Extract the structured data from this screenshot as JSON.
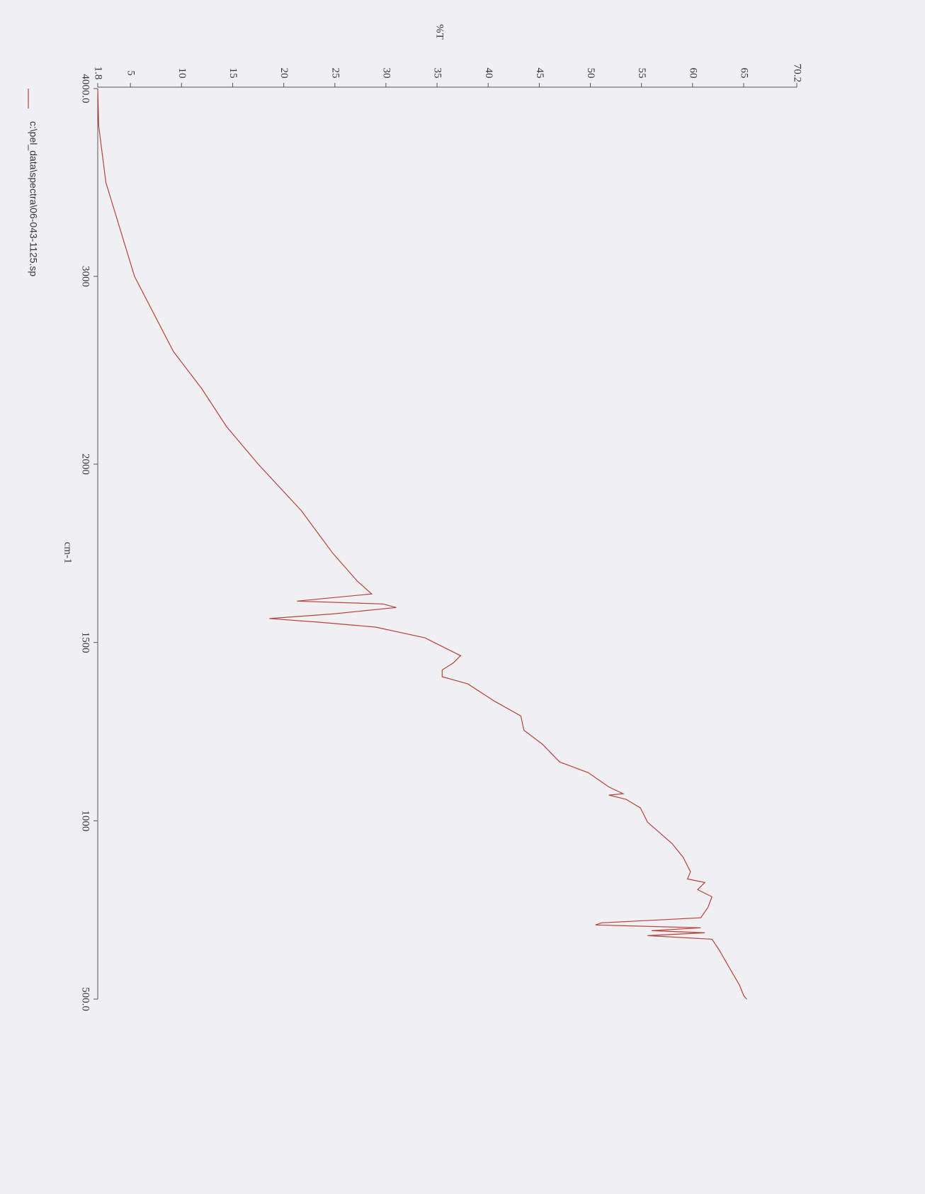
{
  "chart_data": {
    "type": "line",
    "orientation": "rotated",
    "x_label": "cm-1",
    "y_label": "%T",
    "xlim": [
      4000,
      500
    ],
    "x_scale_break": 2000,
    "xticks": [
      {
        "value": 4000,
        "label": "4000.0"
      },
      3000,
      2000,
      1500,
      1000,
      {
        "value": 500,
        "label": "500.0"
      }
    ],
    "ylim": [
      1.8,
      70.2
    ],
    "yticks": [
      1.8,
      5,
      10,
      15,
      20,
      25,
      30,
      35,
      40,
      45,
      50,
      55,
      60,
      65,
      70.2
    ],
    "legend": "left",
    "x": [
      4000,
      3800,
      3500,
      3000,
      2600,
      2400,
      2200,
      2000,
      1870,
      1750,
      1672,
      1636,
      1616,
      1608,
      1598,
      1580,
      1567,
      1557,
      1543,
      1513,
      1463,
      1443,
      1423,
      1404,
      1384,
      1334,
      1294,
      1254,
      1215,
      1165,
      1135,
      1095,
      1076,
      1072,
      1060,
      1036,
      996,
      936,
      897,
      857,
      837,
      827,
      807,
      787,
      757,
      728,
      714,
      708,
      700,
      692,
      686,
      678,
      668,
      638,
      588,
      539,
      510,
      500
    ],
    "series": [
      {
        "name": "c:\\pel_data\\spectra\\06-043-1125.sp",
        "color": "#b8403f",
        "values": [
          1.8,
          1.9,
          2.6,
          5.4,
          9.2,
          12,
          14.4,
          17.5,
          21.7,
          24.8,
          27.2,
          28.6,
          21.3,
          29.7,
          31,
          24.8,
          18.6,
          23.4,
          29,
          33.8,
          37.3,
          36.6,
          35.5,
          35.5,
          38,
          40.7,
          43.2,
          43.5,
          45.3,
          47,
          49.8,
          51.8,
          53.2,
          51.8,
          53.5,
          54.9,
          55.6,
          58,
          59.1,
          59.8,
          59.5,
          61.2,
          60.5,
          61.9,
          61.5,
          60.8,
          51.1,
          50.5,
          60.8,
          56,
          61.2,
          55.6,
          61.9,
          62.6,
          63.6,
          64.6,
          65,
          65.3
        ]
      }
    ]
  }
}
